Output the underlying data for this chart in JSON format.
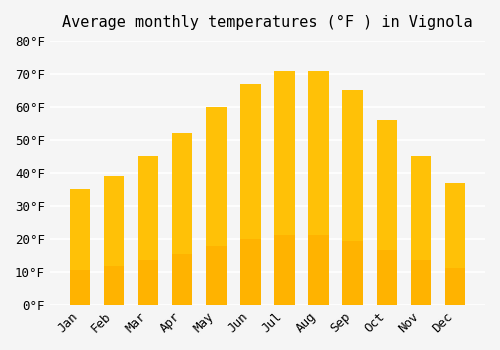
{
  "title": "Average monthly temperatures (°F ) in Vignola",
  "months": [
    "Jan",
    "Feb",
    "Mar",
    "Apr",
    "May",
    "Jun",
    "Jul",
    "Aug",
    "Sep",
    "Oct",
    "Nov",
    "Dec"
  ],
  "values": [
    35,
    39,
    45,
    52,
    60,
    67,
    71,
    71,
    65,
    56,
    45,
    37
  ],
  "bar_color_top": "#FFC107",
  "bar_color_bottom": "#FFB300",
  "bar_edge_color": "none",
  "background_color": "#F5F5F5",
  "grid_color": "#FFFFFF",
  "ylim": [
    0,
    80
  ],
  "ytick_step": 10,
  "title_fontsize": 11,
  "tick_fontsize": 9,
  "font_family": "monospace"
}
